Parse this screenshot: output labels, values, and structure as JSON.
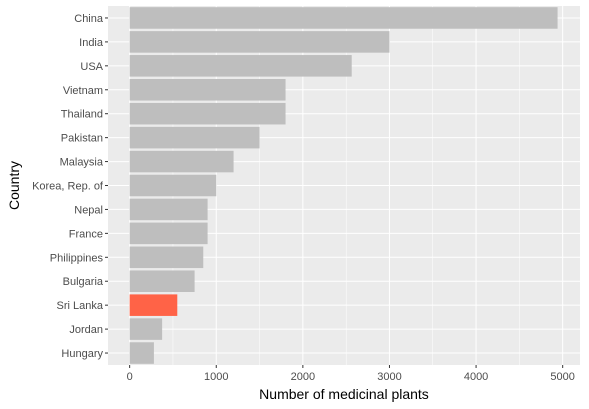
{
  "chart_data": {
    "type": "bar",
    "orientation": "horizontal",
    "title": "",
    "xlabel": "Number of medicinal plants",
    "ylabel": "Country",
    "categories": [
      "China",
      "India",
      "USA",
      "Vietnam",
      "Thailand",
      "Pakistan",
      "Malaysia",
      "Korea, Rep. of",
      "Nepal",
      "France",
      "Philippines",
      "Bulgaria",
      "Sri Lanka",
      "Jordan",
      "Hungary"
    ],
    "values": [
      4941,
      3000,
      2564,
      1800,
      1800,
      1500,
      1200,
      1000,
      900,
      900,
      850,
      750,
      550,
      375,
      280
    ],
    "xlim": [
      -250,
      5200
    ],
    "xticks": [
      0,
      1000,
      2000,
      3000,
      4000,
      5000
    ],
    "grid": true,
    "legend": "none",
    "colors": {
      "bar": "#bebebe",
      "highlight": "#ff6347",
      "highlight_category": "Sri Lanka",
      "panel_background": "#ebebeb",
      "grid_major": "#ffffff",
      "tick_text": "#4d4d4d",
      "axis_title": "#000000"
    }
  }
}
